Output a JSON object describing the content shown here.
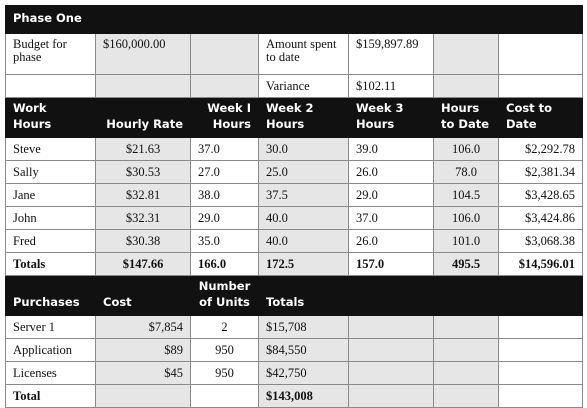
{
  "title": "Phase One",
  "budget": [
    [
      "Budget for\nphase",
      "$160,000.00",
      null,
      "Amount spent\nto date",
      "$159,897.89",
      null,
      null
    ],
    [
      null,
      null,
      null,
      "Variance",
      "$102.11",
      null,
      null
    ]
  ],
  "work": {
    "header": [
      "Work\nHours",
      "Hourly Rate",
      "Week I\nHours",
      "Week 2\nHours",
      "Week 3\nHours",
      "Hours\nto Date",
      "Cost to\nDate"
    ],
    "rows": [
      [
        "Steve",
        "$21.63",
        "37.0",
        "30.0",
        "39.0",
        "106.0",
        "$2,292.78"
      ],
      [
        "Sally",
        "$30.53",
        "27.0",
        "25.0",
        "26.0",
        "78.0",
        "$2,381.34"
      ],
      [
        "Jane",
        "$32.81",
        "38.0",
        "37.5",
        "29.0",
        "104.5",
        "$3,428.65"
      ],
      [
        "John",
        "$32.31",
        "29.0",
        "40.0",
        "37.0",
        "106.0",
        "$3,424.86"
      ],
      [
        "Fred",
        "$30.38",
        "35.0",
        "40.0",
        "26.0",
        "101.0",
        "$3,068.38"
      ]
    ],
    "totals": [
      "Totals",
      "$147.66",
      "166.0",
      "172.5",
      "157.0",
      "495.5",
      "$14,596.01"
    ]
  },
  "purchases": {
    "header": [
      "Purchases",
      "Cost",
      "Number\nof Units",
      "Totals",
      null,
      null,
      null
    ],
    "rows": [
      [
        "Server 1",
        "$7,854",
        "2",
        "$15,708",
        null,
        null,
        null
      ],
      [
        "Application",
        "$89",
        "950",
        "$84,550",
        null,
        null,
        null
      ],
      [
        "Licenses",
        "$45",
        "950",
        "$42,750",
        null,
        null,
        null
      ]
    ],
    "total": [
      "Total",
      null,
      null,
      "$143,008",
      null,
      null,
      null
    ]
  }
}
